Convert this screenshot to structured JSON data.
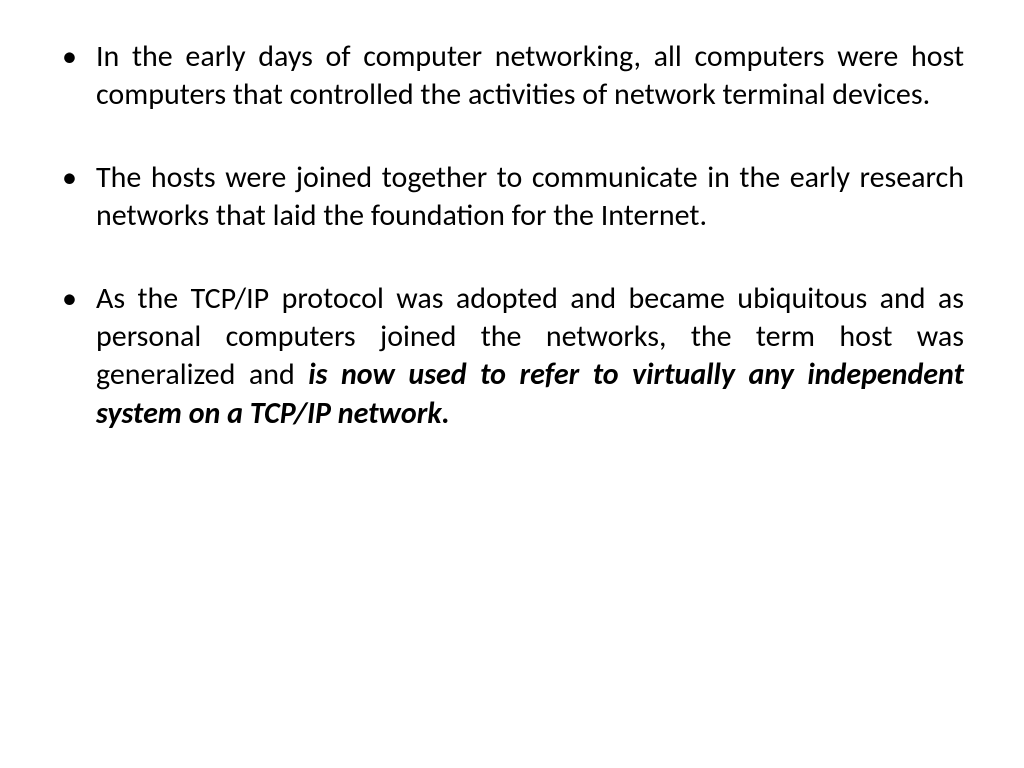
{
  "slide": {
    "background_color": "#ffffff",
    "text_color": "#000000",
    "font_family": "Calibri",
    "font_size_pt": 28,
    "line_height": 1.28,
    "text_align": "justify",
    "bullet_char": "•",
    "bullets": [
      {
        "text": "In  the early days of computer networking, all computers were host computers that controlled the activities of network terminal devices.",
        "emphasized_tail": ""
      },
      {
        "text": "The hosts were joined together to communicate in the early research networks that laid the foundation for the Internet.",
        "emphasized_tail": ""
      },
      {
        "text": "As the TCP/IP protocol was adopted and became ubiquitous and as personal computers joined the networks, the term host was generalized and ",
        "emphasized_tail": "is now used to refer to virtually any independent system on a TCP/IP network."
      }
    ]
  }
}
